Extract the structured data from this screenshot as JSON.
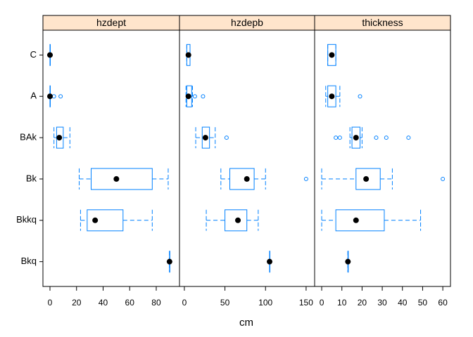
{
  "chart_data": {
    "type": "box",
    "categories": [
      "C",
      "A",
      "BAk",
      "Bk",
      "Bkkq",
      "Bkq"
    ],
    "xlabel": "cm",
    "color": "#0080ff",
    "strip_color": "#ffe5cc",
    "panels": [
      {
        "name": "hzdept",
        "xlim": [
          -5.3,
          97.5
        ],
        "xticks": [
          0,
          20,
          40,
          60,
          80
        ],
        "boxes": [
          {
            "min": 0,
            "q1": 0,
            "median": 0,
            "q3": 0,
            "max": 0,
            "outliers": []
          },
          {
            "min": 0,
            "q1": 0,
            "median": 0,
            "q3": 0,
            "max": 0,
            "outliers": [
              3,
              8
            ]
          },
          {
            "min": 3,
            "q1": 5,
            "median": 7,
            "q3": 10,
            "max": 15,
            "outliers": []
          },
          {
            "min": 22,
            "q1": 31,
            "median": 50,
            "q3": 77,
            "max": 89,
            "outliers": []
          },
          {
            "min": 23,
            "q1": 28,
            "median": 34,
            "q3": 55,
            "max": 77,
            "outliers": []
          },
          {
            "min": 90,
            "q1": 90,
            "median": 90,
            "q3": 90,
            "max": 90,
            "outliers": []
          }
        ]
      },
      {
        "name": "hzdepb",
        "xlim": [
          -6,
          160.5
        ],
        "xticks": [
          0,
          50,
          100,
          150
        ],
        "boxes": [
          {
            "min": 3,
            "q1": 3,
            "median": 5,
            "q3": 7,
            "max": 7,
            "outliers": []
          },
          {
            "min": 2,
            "q1": 3,
            "median": 5,
            "q3": 9,
            "max": 10,
            "outliers": [
              13,
              23
            ]
          },
          {
            "min": 14,
            "q1": 22,
            "median": 26,
            "q3": 31,
            "max": 38,
            "outliers": [
              52
            ]
          },
          {
            "min": 45,
            "q1": 56,
            "median": 77,
            "q3": 86,
            "max": 100,
            "outliers": [
              150
            ]
          },
          {
            "min": 27,
            "q1": 50,
            "median": 66,
            "q3": 77,
            "max": 91,
            "outliers": []
          },
          {
            "min": 105,
            "q1": 105,
            "median": 105,
            "q3": 105,
            "max": 105,
            "outliers": []
          }
        ]
      },
      {
        "name": "thickness",
        "xlim": [
          -3.5,
          63.8
        ],
        "xticks": [
          0,
          10,
          20,
          30,
          40,
          50,
          60
        ],
        "boxes": [
          {
            "min": 3,
            "q1": 3,
            "median": 5,
            "q3": 7,
            "max": 7,
            "outliers": []
          },
          {
            "min": 2,
            "q1": 3,
            "median": 5,
            "q3": 7,
            "max": 9,
            "outliers": [
              19
            ]
          },
          {
            "min": 14,
            "q1": 15,
            "median": 17,
            "q3": 19,
            "max": 20,
            "outliers": [
              7,
              9,
              27,
              32,
              43
            ]
          },
          {
            "min": 0,
            "q1": 17,
            "median": 22,
            "q3": 29,
            "max": 35,
            "outliers": [
              60
            ]
          },
          {
            "min": 0,
            "q1": 7,
            "median": 17,
            "q3": 31,
            "max": 49,
            "outliers": []
          },
          {
            "min": 13,
            "q1": 13,
            "median": 13,
            "q3": 13,
            "max": 13,
            "outliers": []
          }
        ]
      }
    ]
  }
}
